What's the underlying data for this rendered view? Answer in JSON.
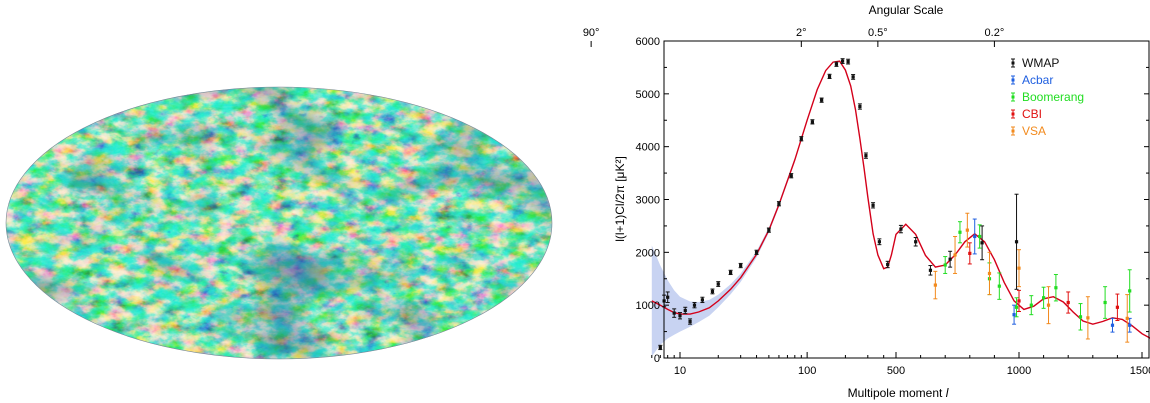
{
  "sky_map": {
    "name": "Cosmic microwave background temperature sky map"
  },
  "chart_data": {
    "type": "scatter",
    "top_axis": {
      "label": "Angular Scale",
      "ticks": [
        {
          "label": "90°",
          "l": 2
        },
        {
          "label": "2°",
          "l": 90
        },
        {
          "label": "0.5°",
          "l": 360
        },
        {
          "label": "0.2°",
          "l": 900
        }
      ]
    },
    "xlabel_prefix": "Multipole moment",
    "xlabel_symbol": "l",
    "ylabel": "l(l+1)Cl/2π [μK²]",
    "xscale": "log-to-500-then-linear",
    "xlim": [
      6,
      1700
    ],
    "ylim": [
      0,
      6000
    ],
    "x_ticks": [
      10,
      100,
      500,
      1000,
      1500
    ],
    "x_tick_labels": [
      "10",
      "100",
      "500",
      "1000",
      "1500"
    ],
    "y_ticks": [
      0,
      1000,
      2000,
      3000,
      4000,
      5000,
      6000
    ],
    "y_tick_labels": [
      "0",
      "1000",
      "2000",
      "3000",
      "4000",
      "5000",
      "6000"
    ],
    "grid": false,
    "legend_position": "top-right",
    "model_curve": {
      "color": "#d4001a",
      "band_color": "#b6c4ee",
      "x": [
        6,
        7,
        8,
        9,
        10,
        12,
        14,
        17,
        20,
        25,
        30,
        40,
        50,
        60,
        80,
        100,
        120,
        140,
        160,
        180,
        200,
        220,
        240,
        260,
        280,
        300,
        330,
        360,
        400,
        430,
        460,
        500,
        540,
        580,
        620,
        660,
        700,
        740,
        780,
        820,
        860,
        900,
        940,
        980,
        1020,
        1060,
        1100,
        1140,
        1180,
        1220,
        1260,
        1300,
        1340,
        1380,
        1420,
        1460,
        1500,
        1540,
        1580,
        1620,
        1660,
        1700
      ],
      "y": [
        1080,
        1000,
        920,
        860,
        830,
        830,
        870,
        950,
        1080,
        1300,
        1520,
        1960,
        2420,
        2900,
        3750,
        4500,
        5080,
        5440,
        5600,
        5620,
        5450,
        5150,
        4700,
        4150,
        3600,
        3050,
        2350,
        1950,
        1690,
        1720,
        1950,
        2340,
        2530,
        2340,
        1940,
        1720,
        1760,
        1950,
        2200,
        2350,
        2200,
        1860,
        1430,
        1080,
        920,
        980,
        1120,
        1160,
        1060,
        870,
        700,
        640,
        690,
        760,
        730,
        610,
        460,
        360,
        320,
        340,
        360,
        340
      ],
      "band_halfwidth": [
        1050,
        750,
        550,
        420,
        330,
        240,
        190,
        150,
        120,
        95,
        80,
        60,
        50,
        45,
        40
      ]
    },
    "series": [
      {
        "name": "WMAP",
        "color": "#111111",
        "points": [
          {
            "x": 7,
            "y": 200,
            "err": 40
          },
          {
            "x": 7.5,
            "y": 1080,
            "err": 110
          },
          {
            "x": 8,
            "y": 1150,
            "err": 100
          },
          {
            "x": 9,
            "y": 850,
            "err": 80
          },
          {
            "x": 10,
            "y": 800,
            "err": 60
          },
          {
            "x": 11,
            "y": 900,
            "err": 60
          },
          {
            "x": 12,
            "y": 690,
            "err": 50
          },
          {
            "x": 13,
            "y": 1000,
            "err": 50
          },
          {
            "x": 15,
            "y": 1100,
            "err": 50
          },
          {
            "x": 18,
            "y": 1260,
            "err": 45
          },
          {
            "x": 20,
            "y": 1400,
            "err": 45
          },
          {
            "x": 25,
            "y": 1620,
            "err": 40
          },
          {
            "x": 30,
            "y": 1750,
            "err": 40
          },
          {
            "x": 40,
            "y": 2000,
            "err": 40
          },
          {
            "x": 50,
            "y": 2420,
            "err": 40
          },
          {
            "x": 60,
            "y": 2920,
            "err": 40
          },
          {
            "x": 75,
            "y": 3450,
            "err": 40
          },
          {
            "x": 90,
            "y": 4150,
            "err": 40
          },
          {
            "x": 110,
            "y": 4470,
            "err": 40
          },
          {
            "x": 130,
            "y": 4880,
            "err": 40
          },
          {
            "x": 150,
            "y": 5330,
            "err": 40
          },
          {
            "x": 170,
            "y": 5560,
            "err": 40
          },
          {
            "x": 190,
            "y": 5620,
            "err": 45
          },
          {
            "x": 210,
            "y": 5610,
            "err": 45
          },
          {
            "x": 230,
            "y": 5320,
            "err": 45
          },
          {
            "x": 260,
            "y": 4760,
            "err": 50
          },
          {
            "x": 290,
            "y": 3830,
            "err": 50
          },
          {
            "x": 330,
            "y": 2890,
            "err": 50
          },
          {
            "x": 370,
            "y": 2200,
            "err": 55
          },
          {
            "x": 430,
            "y": 1770,
            "err": 60
          },
          {
            "x": 520,
            "y": 2440,
            "err": 70
          },
          {
            "x": 580,
            "y": 2200,
            "err": 80
          },
          {
            "x": 640,
            "y": 1660,
            "err": 90
          },
          {
            "x": 720,
            "y": 1870,
            "err": 150
          },
          {
            "x": 850,
            "y": 2180,
            "err": 320
          },
          {
            "x": 990,
            "y": 2200,
            "err": 900
          }
        ]
      },
      {
        "name": "Acbar",
        "color": "#1f5fe0",
        "points": [
          {
            "x": 820,
            "y": 2300,
            "err": 330
          },
          {
            "x": 980,
            "y": 820,
            "err": 180
          },
          {
            "x": 1380,
            "y": 620,
            "err": 130
          },
          {
            "x": 1450,
            "y": 620,
            "err": 130
          },
          {
            "x": 1620,
            "y": 320,
            "err": 100
          }
        ]
      },
      {
        "name": "Boomerang",
        "color": "#22dd22",
        "points": [
          {
            "x": 700,
            "y": 1760,
            "err": 160
          },
          {
            "x": 760,
            "y": 2380,
            "err": 200
          },
          {
            "x": 840,
            "y": 2300,
            "err": 220
          },
          {
            "x": 880,
            "y": 1500,
            "err": 300
          },
          {
            "x": 920,
            "y": 1360,
            "err": 250
          },
          {
            "x": 990,
            "y": 960,
            "err": 180
          },
          {
            "x": 1050,
            "y": 1000,
            "err": 180
          },
          {
            "x": 1100,
            "y": 1140,
            "err": 200
          },
          {
            "x": 1150,
            "y": 1330,
            "err": 250
          },
          {
            "x": 1250,
            "y": 780,
            "err": 250
          },
          {
            "x": 1350,
            "y": 1050,
            "err": 300
          },
          {
            "x": 1450,
            "y": 1270,
            "err": 400
          }
        ]
      },
      {
        "name": "CBI",
        "color": "#e01010",
        "points": [
          {
            "x": 800,
            "y": 1980,
            "err": 200
          },
          {
            "x": 1000,
            "y": 1080,
            "err": 200
          },
          {
            "x": 1200,
            "y": 1050,
            "err": 200
          },
          {
            "x": 1400,
            "y": 960,
            "err": 250
          },
          {
            "x": 1560,
            "y": 680,
            "err": 300
          }
        ]
      },
      {
        "name": "VSA",
        "color": "#f28a1d",
        "points": [
          {
            "x": 660,
            "y": 1380,
            "err": 260
          },
          {
            "x": 740,
            "y": 1950,
            "err": 350
          },
          {
            "x": 790,
            "y": 2420,
            "err": 320
          },
          {
            "x": 880,
            "y": 1600,
            "err": 400
          },
          {
            "x": 1000,
            "y": 1700,
            "err": 350
          },
          {
            "x": 1120,
            "y": 1000,
            "err": 350
          },
          {
            "x": 1280,
            "y": 760,
            "err": 400
          },
          {
            "x": 1440,
            "y": 750,
            "err": 450
          }
        ]
      }
    ]
  }
}
